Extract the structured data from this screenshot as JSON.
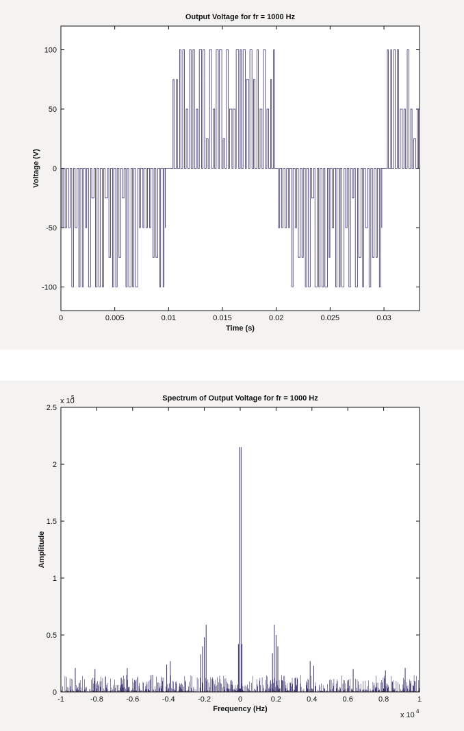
{
  "chart_data": [
    {
      "type": "line",
      "title": "Output Voltage for fr = 1000 Hz",
      "xlabel": "Time (s)",
      "ylabel": "Voltage (V)",
      "xlim": [
        0,
        0.0333
      ],
      "ylim": [
        -120,
        120
      ],
      "xticks": [
        0,
        0.005,
        0.01,
        0.015,
        0.02,
        0.025,
        0.03
      ],
      "xtick_labels": [
        "0",
        "0.005",
        "0.01",
        "0.015",
        "0.02",
        "0.025",
        "0.03"
      ],
      "yticks": [
        -100,
        -50,
        0,
        50,
        100
      ],
      "ytick_labels": [
        "-100",
        "-50",
        "0",
        "50",
        "100"
      ],
      "grid": false,
      "series": [
        {
          "color": "#3b2f6e",
          "description_levels": [
            -100,
            -75,
            -50,
            -25,
            0,
            25,
            50,
            75,
            100
          ],
          "segments": [
            {
              "t_start": 0.0,
              "t_end": 0.0097,
              "polarity": -1
            },
            {
              "t_start": 0.0097,
              "t_end": 0.0103,
              "polarity": 0
            },
            {
              "t_start": 0.0103,
              "t_end": 0.0199,
              "polarity": 1
            },
            {
              "t_start": 0.0199,
              "t_end": 0.0201,
              "polarity": 0
            },
            {
              "t_start": 0.0201,
              "t_end": 0.0298,
              "polarity": -1
            },
            {
              "t_start": 0.0298,
              "t_end": 0.0302,
              "polarity": 0
            },
            {
              "t_start": 0.0302,
              "t_end": 0.0333,
              "polarity": 1
            }
          ],
          "switching_frequency_hz": 1000,
          "amplitude": 100
        }
      ]
    },
    {
      "type": "line",
      "title": "Spectrum of Output Voltage for fr = 1000 Hz",
      "xlabel": "Frequency (Hz)",
      "ylabel": "Amplitude",
      "xlim": [
        -10000,
        10000
      ],
      "ylim": [
        0,
        250000
      ],
      "xticks": [
        -10000,
        -8000,
        -6000,
        -4000,
        -2000,
        0,
        2000,
        4000,
        6000,
        8000,
        10000
      ],
      "xtick_labels": [
        "-1",
        "-0.8",
        "-0.6",
        "-0.4",
        "-0.2",
        "0",
        "0.2",
        "0.4",
        "0.6",
        "0.8",
        "1"
      ],
      "x_multiplier_label": "x 10",
      "x_multiplier_exp": "4",
      "yticks": [
        0,
        50000,
        100000,
        150000,
        200000,
        250000
      ],
      "ytick_labels": [
        "0",
        "0.5",
        "1",
        "1.5",
        "2",
        "2.5"
      ],
      "y_multiplier_label": "x 10",
      "y_multiplier_exp": "5",
      "grid": false,
      "series": [
        {
          "color": "#3b2f6e",
          "peaks": [
            {
              "x": -50,
              "y": 215000
            },
            {
              "x": 50,
              "y": 215000
            },
            {
              "x": -100,
              "y": 42000
            },
            {
              "x": 100,
              "y": 42000
            },
            {
              "x": -1900,
              "y": 59000
            },
            {
              "x": -2000,
              "y": 48000
            },
            {
              "x": -2100,
              "y": 40000
            },
            {
              "x": -2200,
              "y": 33000
            },
            {
              "x": 1900,
              "y": 59000
            },
            {
              "x": 2000,
              "y": 50000
            },
            {
              "x": 2100,
              "y": 40000
            },
            {
              "x": 1800,
              "y": 34000
            },
            {
              "x": -3900,
              "y": 27000
            },
            {
              "x": -4100,
              "y": 24000
            },
            {
              "x": 3900,
              "y": 27000
            },
            {
              "x": 4100,
              "y": 23000
            },
            {
              "x": -9200,
              "y": 21000
            },
            {
              "x": 9200,
              "y": 21000
            },
            {
              "x": -6300,
              "y": 21000
            },
            {
              "x": 6300,
              "y": 20000
            },
            {
              "x": -8100,
              "y": 20000
            },
            {
              "x": 8100,
              "y": 19000
            }
          ],
          "noise_floor_max": 15000
        }
      ]
    }
  ]
}
